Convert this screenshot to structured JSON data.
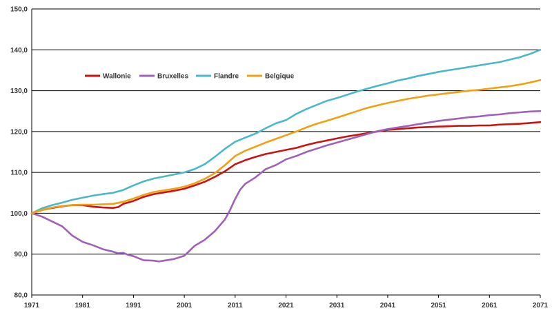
{
  "chart_data": {
    "type": "line",
    "title": "",
    "xlabel": "",
    "ylabel": "",
    "xlim": [
      1971,
      2071
    ],
    "ylim": [
      80,
      150
    ],
    "yticks": [
      "80,0",
      "90,0",
      "100,0",
      "110,0",
      "120,0",
      "130,0",
      "140,0",
      "150,0"
    ],
    "xticks": [
      "1971",
      "1981",
      "1991",
      "2001",
      "2011",
      "2021",
      "2031",
      "2041",
      "2051",
      "2061",
      "2071"
    ],
    "grid": "horizontal",
    "legend_placement": "top-left",
    "series": [
      {
        "name": "Wallonie",
        "color": "#cc1111",
        "x": [
          1971,
          1973,
          1975,
          1977,
          1979,
          1981,
          1983,
          1985,
          1987,
          1988,
          1989,
          1991,
          1993,
          1995,
          1997,
          1999,
          2001,
          2003,
          2005,
          2007,
          2009,
          2011,
          2013,
          2015,
          2017,
          2019,
          2021,
          2023,
          2025,
          2027,
          2029,
          2031,
          2033,
          2035,
          2037,
          2039,
          2041,
          2043,
          2045,
          2047,
          2049,
          2051,
          2053,
          2055,
          2057,
          2059,
          2061,
          2063,
          2065,
          2067,
          2069,
          2071
        ],
        "values": [
          100.0,
          100.8,
          101.3,
          101.7,
          102.0,
          102.0,
          101.6,
          101.4,
          101.3,
          101.5,
          102.3,
          103.0,
          104.0,
          104.7,
          105.1,
          105.5,
          106.0,
          106.8,
          107.7,
          108.9,
          110.3,
          112.0,
          113.0,
          113.8,
          114.5,
          115.0,
          115.5,
          116.0,
          116.7,
          117.3,
          117.8,
          118.3,
          118.8,
          119.2,
          119.6,
          120.0,
          120.4,
          120.6,
          120.8,
          121.0,
          121.1,
          121.2,
          121.3,
          121.4,
          121.4,
          121.5,
          121.5,
          121.7,
          121.8,
          121.9,
          122.1,
          122.3
        ]
      },
      {
        "name": "Bruxelles",
        "color": "#a060b8",
        "x": [
          1971,
          1973,
          1975,
          1977,
          1979,
          1981,
          1983,
          1985,
          1987,
          1988,
          1989,
          1990,
          1991,
          1993,
          1995,
          1996,
          1997,
          1999,
          2001,
          2002,
          2003,
          2005,
          2007,
          2009,
          2010,
          2011,
          2012,
          2013,
          2015,
          2017,
          2019,
          2021,
          2023,
          2025,
          2027,
          2029,
          2031,
          2033,
          2035,
          2037,
          2039,
          2041,
          2043,
          2045,
          2047,
          2049,
          2051,
          2053,
          2055,
          2057,
          2059,
          2061,
          2063,
          2065,
          2067,
          2069,
          2071
        ],
        "values": [
          100.0,
          99.2,
          98.0,
          96.8,
          94.5,
          93.0,
          92.2,
          91.2,
          90.6,
          90.2,
          90.3,
          89.8,
          89.5,
          88.5,
          88.4,
          88.2,
          88.4,
          88.8,
          89.6,
          90.8,
          92.0,
          93.5,
          95.6,
          98.5,
          100.8,
          103.5,
          105.8,
          107.2,
          108.8,
          110.8,
          111.8,
          113.2,
          114.0,
          115.0,
          115.8,
          116.6,
          117.3,
          118.0,
          118.7,
          119.4,
          120.1,
          120.6,
          121.0,
          121.4,
          121.8,
          122.2,
          122.6,
          122.9,
          123.2,
          123.5,
          123.7,
          124.0,
          124.2,
          124.5,
          124.7,
          124.9,
          125.0
        ]
      },
      {
        "name": "Flandre",
        "color": "#4ab8c8",
        "x": [
          1971,
          1973,
          1975,
          1977,
          1979,
          1981,
          1983,
          1985,
          1987,
          1989,
          1991,
          1993,
          1995,
          1997,
          1999,
          2001,
          2003,
          2005,
          2007,
          2009,
          2011,
          2013,
          2015,
          2017,
          2019,
          2021,
          2023,
          2025,
          2027,
          2029,
          2031,
          2033,
          2035,
          2037,
          2039,
          2041,
          2043,
          2045,
          2047,
          2049,
          2051,
          2053,
          2055,
          2057,
          2059,
          2061,
          2063,
          2065,
          2067,
          2069,
          2071
        ],
        "values": [
          100.0,
          101.2,
          102.0,
          102.6,
          103.3,
          103.8,
          104.3,
          104.7,
          105.0,
          105.7,
          106.8,
          107.8,
          108.5,
          109.0,
          109.5,
          110.0,
          110.8,
          112.0,
          113.8,
          115.8,
          117.5,
          118.5,
          119.5,
          120.8,
          122.0,
          122.8,
          124.3,
          125.5,
          126.5,
          127.5,
          128.2,
          129.0,
          129.8,
          130.5,
          131.2,
          131.8,
          132.5,
          133.0,
          133.6,
          134.1,
          134.6,
          135.0,
          135.4,
          135.8,
          136.2,
          136.6,
          137.0,
          137.6,
          138.2,
          139.0,
          140.0
        ]
      },
      {
        "name": "Belgique",
        "color": "#f0a010",
        "x": [
          1971,
          1973,
          1975,
          1977,
          1979,
          1981,
          1983,
          1985,
          1987,
          1989,
          1991,
          1993,
          1995,
          1997,
          1999,
          2001,
          2003,
          2005,
          2007,
          2009,
          2011,
          2013,
          2015,
          2017,
          2019,
          2021,
          2023,
          2025,
          2027,
          2029,
          2031,
          2033,
          2035,
          2037,
          2039,
          2041,
          2043,
          2045,
          2047,
          2049,
          2051,
          2053,
          2055,
          2057,
          2059,
          2061,
          2063,
          2065,
          2067,
          2069,
          2071
        ],
        "values": [
          100.0,
          100.8,
          101.4,
          101.8,
          102.0,
          102.1,
          102.1,
          102.2,
          102.3,
          102.8,
          103.6,
          104.5,
          105.2,
          105.6,
          106.0,
          106.5,
          107.3,
          108.4,
          109.8,
          111.8,
          114.0,
          115.3,
          116.3,
          117.3,
          118.2,
          119.1,
          120.0,
          121.0,
          121.9,
          122.6,
          123.4,
          124.2,
          125.0,
          125.8,
          126.4,
          127.0,
          127.5,
          128.0,
          128.4,
          128.8,
          129.1,
          129.4,
          129.7,
          130.0,
          130.2,
          130.5,
          130.8,
          131.1,
          131.5,
          132.0,
          132.6
        ]
      }
    ]
  }
}
